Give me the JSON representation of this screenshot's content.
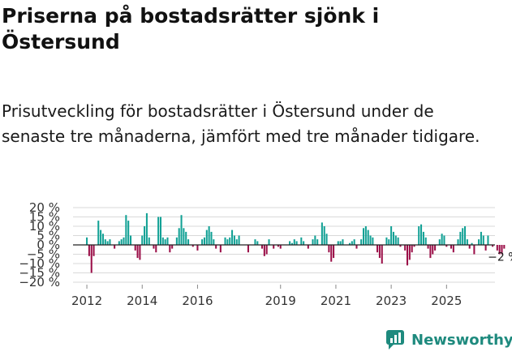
{
  "title": "Priserna på bostadsrätter sjönk i Östersund",
  "subtitle": "Prisutveckling för bostadsrätter i Östersund under de senaste tre månaderna, jämfört med tre månader tidigare.",
  "brand": {
    "name": "Newsworthy",
    "icon": "newsworthy-logo-icon"
  },
  "colors": {
    "positive": "#12a195",
    "negative": "#9b0f48",
    "grid": "#d9d9d9",
    "zero": "#222222"
  },
  "chart_data": {
    "type": "bar",
    "title": "",
    "xlabel": "",
    "ylabel": "",
    "ylim": [
      -20,
      20
    ],
    "yticks": [
      20,
      15,
      10,
      5,
      0,
      -5,
      -10,
      -15,
      -20
    ],
    "ytick_labels": [
      "20 %",
      "15 %",
      "10 %",
      "5 %",
      "0 %",
      "−5 %",
      "−10 %",
      "−15 %",
      "−20 %"
    ],
    "xlim": [
      2011.5,
      2026.75
    ],
    "xticks": [
      2012,
      2014,
      2016,
      2019,
      2021,
      2023,
      2025
    ],
    "xtick_labels": [
      "2012",
      "2014",
      "2016",
      "2019",
      "2021",
      "2023",
      "2025"
    ],
    "start": 2012.0,
    "step": 0.08333,
    "values": [
      4,
      -6,
      -15,
      -6,
      0,
      13,
      8,
      6,
      3,
      2,
      3,
      0,
      -2,
      0,
      2,
      3,
      4,
      16,
      13,
      5,
      0,
      -3,
      -7,
      -8,
      5,
      10,
      17,
      4,
      0,
      -2,
      -4,
      15,
      15,
      4,
      3,
      4,
      -4,
      -2,
      0,
      4,
      9,
      16,
      9,
      7,
      3,
      0,
      -1,
      0,
      -3,
      0,
      3,
      4,
      8,
      10,
      7,
      3,
      -2,
      0,
      -4,
      0,
      4,
      3,
      4,
      8,
      5,
      3,
      5,
      0,
      0,
      0,
      -4,
      0,
      0,
      3,
      2,
      0,
      -2,
      -6,
      -5,
      3,
      0,
      -2,
      0,
      -1,
      -2,
      0,
      0,
      0,
      2,
      1,
      3,
      2,
      0,
      4,
      2,
      0,
      -2,
      0,
      3,
      5,
      3,
      0,
      12,
      10,
      6,
      -4,
      -9,
      -7,
      0,
      2,
      2,
      3,
      0,
      0,
      1,
      2,
      3,
      -2,
      0,
      3,
      9,
      10,
      8,
      5,
      4,
      0,
      -4,
      -7,
      -10,
      0,
      4,
      3,
      10,
      7,
      5,
      4,
      -1,
      0,
      -3,
      -11,
      -8,
      -4,
      -1,
      0,
      10,
      11,
      7,
      4,
      -2,
      -7,
      -5,
      -3,
      0,
      3,
      6,
      5,
      -1,
      0,
      -2,
      -4,
      0,
      3,
      7,
      9,
      10,
      3,
      -2,
      1,
      -5,
      0,
      3,
      7,
      5,
      -3,
      5,
      0,
      -1,
      0,
      -3,
      -5,
      -5,
      -2
    ],
    "annotation": {
      "label": "−2 %",
      "index": 181
    }
  }
}
